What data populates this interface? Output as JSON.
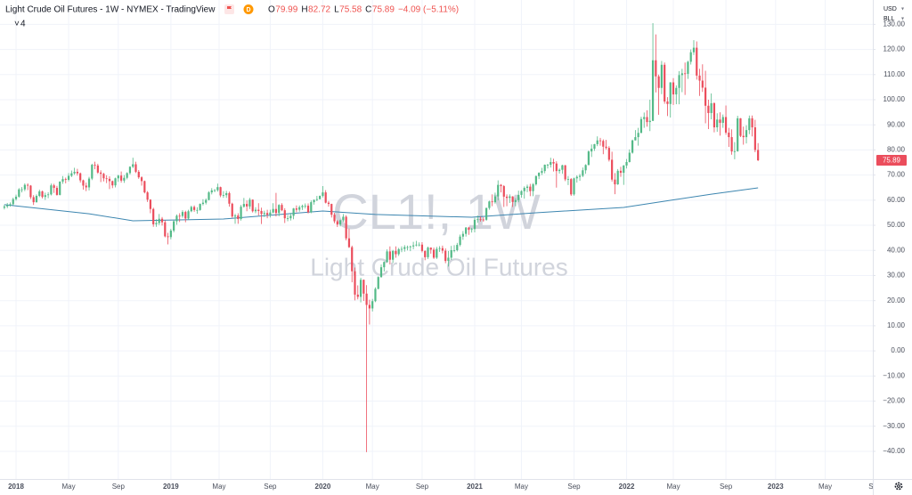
{
  "header": {
    "title": "Light Crude Oil Futures - 1W - NYMEX - TradingView",
    "ohlc_letters": [
      "O",
      "H",
      "L",
      "C"
    ],
    "change": "−4.09 (−5.11%)",
    "indicators": 4,
    "watermark_symbol": "CL1!, 1W",
    "watermark_name": "Light Crude Oil Futures",
    "currency": "USD",
    "unit": "BLL"
  },
  "chart_data": {
    "type": "candlestick",
    "up_color": "#53b987",
    "down_color": "#eb4d5c",
    "grid": true,
    "open": [
      57.0,
      57.5,
      58.0,
      58.4,
      60.4,
      61.4,
      64.3,
      64.3,
      66.1,
      65.8,
      61.2,
      59.2,
      61.7,
      63.5,
      61.3,
      62.0,
      62.3,
      65.9,
      64.9,
      62.1,
      67.4,
      68.4,
      68.1,
      69.7,
      70.7,
      71.3,
      70.7,
      67.9,
      65.8,
      65.1,
      68.6,
      74.1,
      73.8,
      71.0,
      70.5,
      68.7,
      68.5,
      67.6,
      65.9,
      68.7,
      69.8,
      67.8,
      68.9,
      70.8,
      73.3,
      74.3,
      71.3,
      69.1,
      67.6,
      63.1,
      60.2,
      56.5,
      50.4,
      50.9,
      52.6,
      51.2,
      45.6,
      45.3,
      47.9,
      51.6,
      53.8,
      53.7,
      55.3,
      52.7,
      55.6,
      57.3,
      56.1,
      56.1,
      58.5,
      59.0,
      60.1,
      63.1,
      63.9,
      64.0,
      65.2,
      61.9,
      62.0,
      62.8,
      58.6,
      53.5,
      53.9,
      52.5,
      57.4,
      58.5,
      57.5,
      60.2,
      55.6,
      56.2,
      55.7,
      54.5,
      54.9,
      54.2,
      55.1,
      56.5,
      54.9,
      58.1,
      56.0,
      52.8,
      52.8,
      53.8,
      56.7,
      56.2,
      57.2,
      57.7,
      57.8,
      55.2,
      59.2,
      60.1,
      60.4,
      61.7,
      63.1,
      59.0,
      58.5,
      54.2,
      51.6,
      50.3,
      52.0,
      53.4,
      44.8,
      41.3,
      31.7,
      22.4,
      21.5,
      28.3,
      22.8,
      18.3,
      16.9,
      19.8,
      24.7,
      29.4,
      33.3,
      35.4,
      39.6,
      36.3,
      39.8,
      38.5,
      40.5,
      40.6,
      41.3,
      41.3,
      41.6,
      42.0,
      42.3,
      42.3,
      39.8,
      37.3,
      41.1,
      40.3,
      37.1,
      40.6,
      40.9,
      39.9,
      35.8,
      37.1,
      40.1,
      40.1,
      42.2,
      45.5,
      46.6,
      49.1,
      48.2,
      48.5,
      52.2,
      52.4,
      52.3,
      52.2,
      56.9,
      59.5,
      59.2,
      61.5,
      66.1,
      65.6,
      61.4,
      60.9,
      61.5,
      59.3,
      60.0,
      62.1,
      63.6,
      64.9,
      65.4,
      63.6,
      66.3,
      69.6,
      70.9,
      71.6,
      74.1,
      74.1,
      75.2,
      74.6,
      71.6,
      72.1,
      73.9,
      68.3,
      68.4,
      62.3,
      68.7,
      69.3,
      69.7,
      71.9,
      74.0,
      79.4,
      80.5,
      82.3,
      83.8,
      83.6,
      81.3,
      80.8,
      76.1,
      68.2,
      66.3,
      71.7,
      70.9,
      73.8,
      75.2,
      78.9,
      83.8,
      85.1,
      86.8,
      92.3,
      93.1,
      91.1,
      91.6,
      115.7,
      109.3,
      104.7,
      113.9,
      99.3,
      98.3,
      106.9,
      102.1,
      104.7,
      109.8,
      110.5,
      110.3,
      115.1,
      118.9,
      120.7,
      109.6,
      107.6,
      104.8,
      97.6,
      94.7,
      98.6,
      89.0,
      92.1,
      90.8,
      93.1,
      86.9,
      85.1,
      79.4,
      79.5,
      92.6,
      85.6,
      85.1,
      87.9,
      92.6,
      89.0,
      79.99
    ],
    "high": [
      58.2,
      58.9,
      59.1,
      61.0,
      62.2,
      64.8,
      65.2,
      66.7,
      66.7,
      66.0,
      62.0,
      62.3,
      64.2,
      63.8,
      63.0,
      63.2,
      66.6,
      66.5,
      65.7,
      67.5,
      69.6,
      69.0,
      70.8,
      71.8,
      72.9,
      72.5,
      71.0,
      68.2,
      67.0,
      69.3,
      74.5,
      75.3,
      74.5,
      71.9,
      70.9,
      69.9,
      69.5,
      67.8,
      69.0,
      70.1,
      71.4,
      70.0,
      71.1,
      73.5,
      76.9,
      75.3,
      72.0,
      69.5,
      67.8,
      63.6,
      60.4,
      57.0,
      52.4,
      54.5,
      53.3,
      52.0,
      47.0,
      48.6,
      52.0,
      54.3,
      54.8,
      56.0,
      55.8,
      56.2,
      57.8,
      57.9,
      57.2,
      58.7,
      60.4,
      60.7,
      63.6,
      64.8,
      64.4,
      66.6,
      65.4,
      63.6,
      63.7,
      63.4,
      59.0,
      54.6,
      54.8,
      58.1,
      60.9,
      59.9,
      60.9,
      60.3,
      57.2,
      58.8,
      57.0,
      55.8,
      56.2,
      56.2,
      58.8,
      62.9,
      58.4,
      58.8,
      56.8,
      54.1,
      54.9,
      56.9,
      57.9,
      57.9,
      58.2,
      58.7,
      58.7,
      59.9,
      60.3,
      61.7,
      61.9,
      65.6,
      64.0,
      59.7,
      58.6,
      55.0,
      52.1,
      52.3,
      54.5,
      54.0,
      48.7,
      41.9,
      33.2,
      26.1,
      29.1,
      28.4,
      26.2,
      20.4,
      20.7,
      25.3,
      29.7,
      34.4,
      35.6,
      40.4,
      41.6,
      40.2,
      41.6,
      41.0,
      41.6,
      42.1,
      41.9,
      41.9,
      43.4,
      43.8,
      43.2,
      43.3,
      40.0,
      41.5,
      41.2,
      41.1,
      41.4,
      41.7,
      41.9,
      40.8,
      39.8,
      41.8,
      42.1,
      43.0,
      46.3,
      47.7,
      49.3,
      49.4,
      49.0,
      53.0,
      53.9,
      53.5,
      53.2,
      57.0,
      59.8,
      62.3,
      63.0,
      67.9,
      66.4,
      66.0,
      62.3,
      62.3,
      61.6,
      60.8,
      63.8,
      64.0,
      65.5,
      66.2,
      66.5,
      66.8,
      69.8,
      71.1,
      72.9,
      74.2,
      74.5,
      76.9,
      76.5,
      75.5,
      72.6,
      74.1,
      74.0,
      69.6,
      68.8,
      69.0,
      69.9,
      70.5,
      73.0,
      74.3,
      79.8,
      82.2,
      82.4,
      85.4,
      84.8,
      84.2,
      84.0,
      81.5,
      79.3,
      70.8,
      72.4,
      73.3,
      74.0,
      76.4,
      80.2,
      84.1,
      87.9,
      88.8,
      93.2,
      94.9,
      95.8,
      100.0,
      130.5,
      126.0,
      110.0,
      115.4,
      114.8,
      101.0,
      107.0,
      108.6,
      105.7,
      111.4,
      112.3,
      114.8,
      115.5,
      120.0,
      123.7,
      123.2,
      112.3,
      114.1,
      111.5,
      100.0,
      102.5,
      99.0,
      94.6,
      95.0,
      94.1,
      97.7,
      88.8,
      88.2,
      83.1,
      93.6,
      92.7,
      89.3,
      89.8,
      93.7,
      93.7,
      92.0,
      82.72
    ],
    "low": [
      56.3,
      56.8,
      57.4,
      58.0,
      59.8,
      61.0,
      63.1,
      63.6,
      64.0,
      60.5,
      58.1,
      59.0,
      61.2,
      60.7,
      60.1,
      60.8,
      61.9,
      62.9,
      61.8,
      61.9,
      66.5,
      66.7,
      67.5,
      69.2,
      70.1,
      69.8,
      67.0,
      64.2,
      63.6,
      63.9,
      68.0,
      72.3,
      70.5,
      67.2,
      67.5,
      66.8,
      64.4,
      64.8,
      65.1,
      67.3,
      67.0,
      66.9,
      68.3,
      70.2,
      72.8,
      70.8,
      68.5,
      65.8,
      62.7,
      59.3,
      54.8,
      49.4,
      49.4,
      50.1,
      49.9,
      45.2,
      42.4,
      44.4,
      47.2,
      50.2,
      51.3,
      53.0,
      51.2,
      52.2,
      55.2,
      55.4,
      54.6,
      55.8,
      57.9,
      58.3,
      59.9,
      62.3,
      63.2,
      63.4,
      61.2,
      60.9,
      60.9,
      57.4,
      53.0,
      50.6,
      50.6,
      51.9,
      57.0,
      55.6,
      56.5,
      55.1,
      54.8,
      53.9,
      50.5,
      53.3,
      52.8,
      53.1,
      54.7,
      53.5,
      53.6,
      55.6,
      50.9,
      51.6,
      51.9,
      52.4,
      55.2,
      55.4,
      56.1,
      56.7,
      54.7,
      54.8,
      58.2,
      59.6,
      60.4,
      61.1,
      58.7,
      57.4,
      53.1,
      50.8,
      49.3,
      49.6,
      51.3,
      44.0,
      41.0,
      27.3,
      20.1,
      20.5,
      19.3,
      19.9,
      -40.3,
      10.5,
      15.7,
      19.4,
      24.5,
      29.1,
      31.6,
      35.2,
      34.4,
      35.0,
      37.1,
      37.8,
      39.3,
      39.5,
      40.0,
      39.7,
      40.5,
      41.6,
      41.6,
      39.2,
      36.1,
      36.6,
      38.7,
      36.6,
      36.6,
      39.4,
      38.8,
      34.9,
      33.6,
      36.2,
      39.2,
      39.6,
      41.6,
      44.2,
      45.5,
      46.2,
      47.1,
      47.2,
      51.0,
      51.5,
      51.4,
      51.8,
      56.2,
      57.6,
      58.6,
      59.9,
      63.1,
      57.3,
      57.6,
      58.9,
      57.3,
      57.6,
      59.2,
      61.0,
      60.6,
      63.2,
      61.6,
      61.6,
      65.8,
      68.4,
      70.0,
      70.7,
      72.6,
      73.0,
      71.4,
      65.0,
      70.6,
      70.5,
      67.6,
      66.0,
      61.7,
      61.8,
      67.0,
      67.7,
      69.2,
      70.5,
      73.9,
      77.2,
      79.6,
      81.5,
      81.7,
      78.3,
      80.2,
      75.4,
      67.4,
      62.4,
      66.1,
      69.3,
      66.1,
      72.6,
      75.0,
      78.5,
      83.8,
      81.7,
      86.6,
      88.8,
      89.3,
      87.5,
      91.5,
      102.9,
      94.0,
      102.2,
      98.4,
      93.5,
      92.9,
      97.9,
      98.2,
      98.2,
      103.0,
      101.9,
      108.3,
      114.0,
      117.8,
      108.0,
      101.5,
      103.1,
      90.6,
      88.3,
      92.2,
      87.0,
      87.2,
      85.7,
      88.8,
      86.1,
      81.2,
      78.1,
      76.3,
      79.3,
      85.1,
      82.1,
      82.6,
      86.3,
      85.4,
      79.1,
      75.58
    ],
    "close": [
      57.5,
      58.0,
      58.4,
      60.4,
      61.4,
      64.3,
      64.3,
      66.1,
      65.8,
      61.2,
      59.2,
      61.7,
      63.5,
      61.3,
      62.0,
      62.3,
      65.9,
      64.9,
      62.1,
      67.4,
      68.4,
      68.1,
      69.7,
      70.7,
      71.3,
      70.7,
      67.9,
      65.8,
      65.1,
      68.6,
      74.1,
      73.8,
      71.0,
      70.5,
      68.7,
      68.5,
      67.6,
      65.9,
      68.7,
      69.8,
      67.8,
      68.9,
      70.8,
      73.3,
      74.3,
      71.3,
      69.1,
      67.6,
      63.1,
      60.2,
      56.5,
      50.4,
      50.9,
      52.6,
      51.2,
      45.6,
      45.3,
      47.9,
      51.6,
      53.8,
      53.7,
      55.3,
      52.7,
      55.6,
      57.3,
      56.1,
      56.1,
      58.5,
      59.0,
      60.1,
      63.1,
      63.9,
      64.0,
      65.2,
      61.9,
      62.0,
      62.8,
      58.6,
      53.5,
      53.9,
      52.5,
      57.4,
      58.5,
      57.5,
      60.2,
      55.6,
      56.2,
      55.7,
      54.5,
      54.9,
      54.2,
      55.1,
      56.5,
      54.9,
      58.1,
      56.0,
      52.8,
      52.8,
      53.8,
      56.7,
      56.2,
      57.2,
      57.7,
      57.8,
      55.2,
      59.2,
      60.1,
      60.4,
      61.7,
      63.1,
      59.0,
      58.5,
      54.2,
      51.6,
      50.3,
      52.0,
      53.4,
      44.8,
      41.3,
      31.7,
      22.4,
      21.5,
      28.3,
      22.8,
      18.3,
      16.9,
      19.8,
      24.7,
      29.4,
      33.3,
      35.4,
      39.6,
      36.3,
      39.8,
      38.5,
      40.5,
      40.6,
      41.3,
      41.3,
      41.6,
      42.0,
      42.3,
      42.3,
      39.8,
      37.3,
      41.1,
      40.3,
      37.1,
      40.6,
      40.9,
      39.9,
      35.8,
      37.1,
      40.1,
      40.1,
      42.2,
      45.5,
      46.6,
      49.1,
      48.2,
      48.5,
      52.2,
      52.4,
      52.3,
      52.2,
      56.9,
      59.5,
      59.2,
      61.5,
      66.1,
      65.6,
      61.4,
      60.9,
      61.5,
      59.3,
      60.0,
      62.1,
      63.6,
      64.9,
      65.4,
      63.6,
      66.3,
      69.6,
      70.9,
      71.6,
      74.1,
      74.1,
      75.2,
      74.6,
      71.6,
      72.1,
      73.9,
      68.3,
      68.4,
      62.3,
      68.7,
      69.3,
      69.7,
      71.9,
      74.0,
      79.4,
      80.5,
      82.3,
      83.8,
      83.6,
      81.3,
      80.8,
      76.1,
      68.2,
      66.3,
      71.7,
      70.9,
      73.8,
      75.2,
      78.9,
      83.8,
      85.1,
      86.8,
      92.3,
      93.1,
      91.1,
      91.6,
      115.7,
      109.3,
      104.7,
      113.9,
      99.3,
      98.3,
      106.9,
      102.1,
      104.7,
      109.8,
      110.5,
      110.3,
      115.1,
      118.9,
      120.7,
      109.6,
      107.6,
      104.8,
      97.6,
      94.7,
      98.6,
      89.0,
      92.1,
      90.8,
      93.1,
      86.9,
      85.1,
      79.4,
      79.5,
      92.6,
      85.6,
      85.1,
      87.9,
      92.6,
      89.0,
      79.98,
      75.89
    ],
    "ma": {
      "color": "#3d86b0",
      "x": [
        0,
        29,
        44,
        75,
        109,
        127,
        160,
        182,
        212,
        230,
        242,
        258
      ],
      "values": [
        58.2,
        54.6,
        51.8,
        52.5,
        55.7,
        54.3,
        53.2,
        55.0,
        57.1,
        60.3,
        62.4,
        64.9
      ]
    },
    "ylim": [
      -51,
      139.7
    ],
    "yticks": [
      {
        "value": -40,
        "label": "−40.00"
      },
      {
        "value": -30,
        "label": "−30.00"
      },
      {
        "value": -20,
        "label": "−20.00"
      },
      {
        "value": -10,
        "label": "−10.00"
      },
      {
        "value": 0,
        "label": "0.00"
      },
      {
        "value": 10,
        "label": "10.00"
      },
      {
        "value": 20,
        "label": "20.00"
      },
      {
        "value": 30,
        "label": "30.00"
      },
      {
        "value": 40,
        "label": "40.00"
      },
      {
        "value": 50,
        "label": "50.00"
      },
      {
        "value": 60,
        "label": "60.00"
      },
      {
        "value": 70,
        "label": "70.00"
      },
      {
        "value": 80,
        "label": "80.00"
      },
      {
        "value": 90,
        "label": "90.00"
      },
      {
        "value": 100,
        "label": "100.00"
      },
      {
        "value": 110,
        "label": "110.00"
      },
      {
        "value": 120,
        "label": "120.00"
      },
      {
        "value": 130,
        "label": "130.00"
      }
    ],
    "xticks": [
      {
        "value": 4,
        "label": "2018"
      },
      {
        "value": 22,
        "label": "May"
      },
      {
        "value": 39,
        "label": "Sep"
      },
      {
        "value": 57,
        "label": "2019"
      },
      {
        "value": 73.5,
        "label": "May"
      },
      {
        "value": 91,
        "label": "Sep"
      },
      {
        "value": 109,
        "label": "2020"
      },
      {
        "value": 126,
        "label": "May"
      },
      {
        "value": 143,
        "label": "Sep"
      },
      {
        "value": 161,
        "label": "2021"
      },
      {
        "value": 177,
        "label": "May"
      },
      {
        "value": 195,
        "label": "Sep"
      },
      {
        "value": 213,
        "label": "2022"
      },
      {
        "value": 229,
        "label": "May"
      },
      {
        "value": 247,
        "label": "Sep"
      },
      {
        "value": 264,
        "label": "2023"
      },
      {
        "value": 281,
        "label": "May"
      },
      {
        "value": 298,
        "label": "Sep"
      }
    ]
  }
}
